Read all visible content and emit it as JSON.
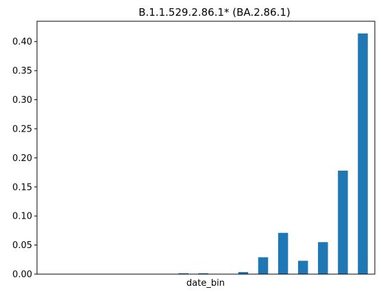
{
  "chart_data": {
    "type": "bar",
    "title": "B.1.1.529.2.86.1* (BA.2.86.1)",
    "xlabel": "date_bin",
    "ylabel": "",
    "ylim": [
      0,
      0.435
    ],
    "yticks": [
      0.0,
      0.05,
      0.1,
      0.15,
      0.2,
      0.25,
      0.3,
      0.35,
      0.4
    ],
    "ytick_labels": [
      "0.00",
      "0.05",
      "0.10",
      "0.15",
      "0.20",
      "0.25",
      "0.30",
      "0.35",
      "0.40"
    ],
    "grid": false,
    "color": "#1f77b4",
    "values": [
      0,
      0,
      0,
      0,
      0,
      0,
      0,
      0.0015,
      0.0015,
      0,
      0.0035,
      0.029,
      0.071,
      0.023,
      0.055,
      0.178,
      0.414
    ]
  }
}
